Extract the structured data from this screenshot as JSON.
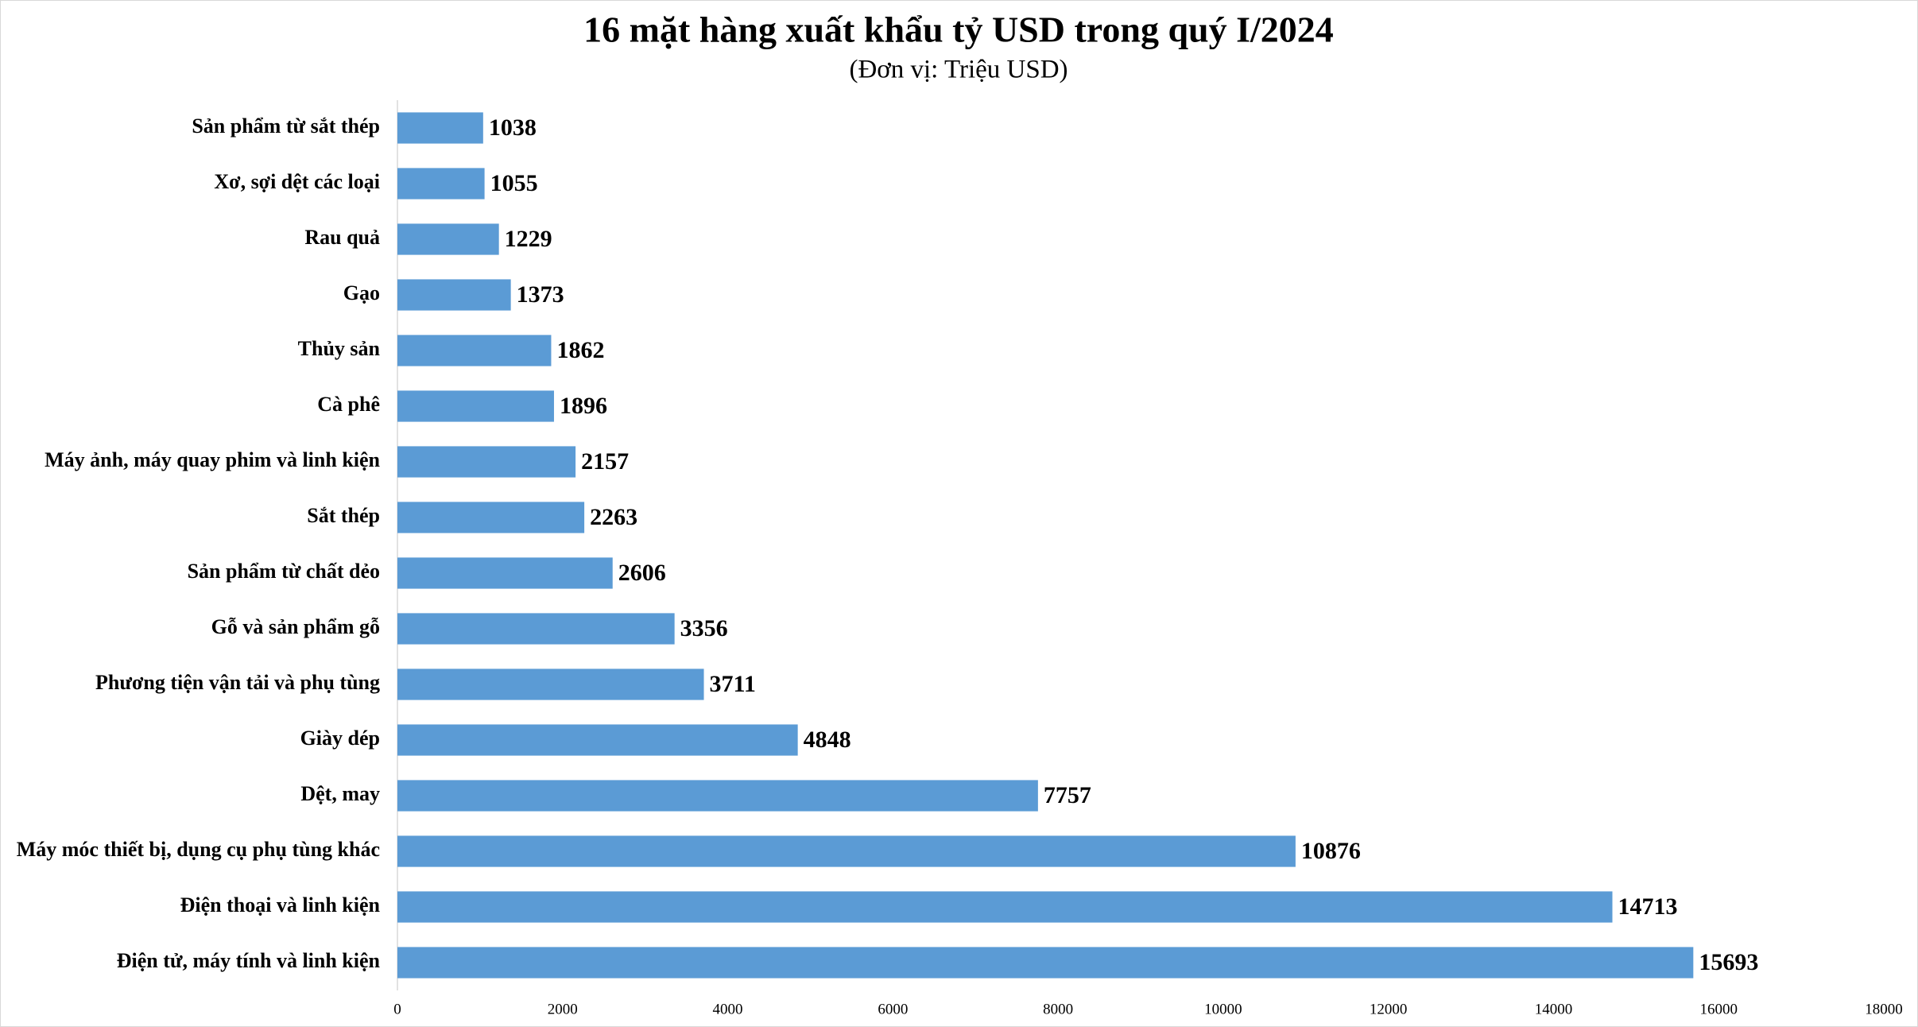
{
  "chart_data": {
    "type": "hbar",
    "title": "16 mặt hàng xuất khẩu tỷ USD trong quý I/2024",
    "subtitle": "(Đơn vị: Triệu USD)",
    "categories": [
      "Sản phẩm từ sắt thép",
      "Xơ, sợi dệt các loại",
      "Rau quả",
      "Gạo",
      "Thủy sản",
      "Cà phê",
      "Máy ảnh, máy quay phim và linh kiện",
      "Sắt thép",
      "Sản phẩm từ chất dẻo",
      "Gỗ và sản phẩm gỗ",
      "Phương tiện vận tải và phụ tùng",
      "Giày dép",
      "Dệt, may",
      "Máy móc thiết bị, dụng cụ phụ tùng khác",
      "Điện thoại và linh kiện",
      "Điện tử, máy tính và linh kiện"
    ],
    "values": [
      1038,
      1055,
      1229,
      1373,
      1862,
      1896,
      2157,
      2263,
      2606,
      3356,
      3711,
      4848,
      7757,
      10876,
      14713,
      15693
    ],
    "color": "#5b9bd5",
    "xlim": [
      0,
      18000
    ],
    "xticks": [
      0,
      2000,
      4000,
      6000,
      8000,
      10000,
      12000,
      14000,
      16000,
      18000
    ],
    "grid": false
  }
}
